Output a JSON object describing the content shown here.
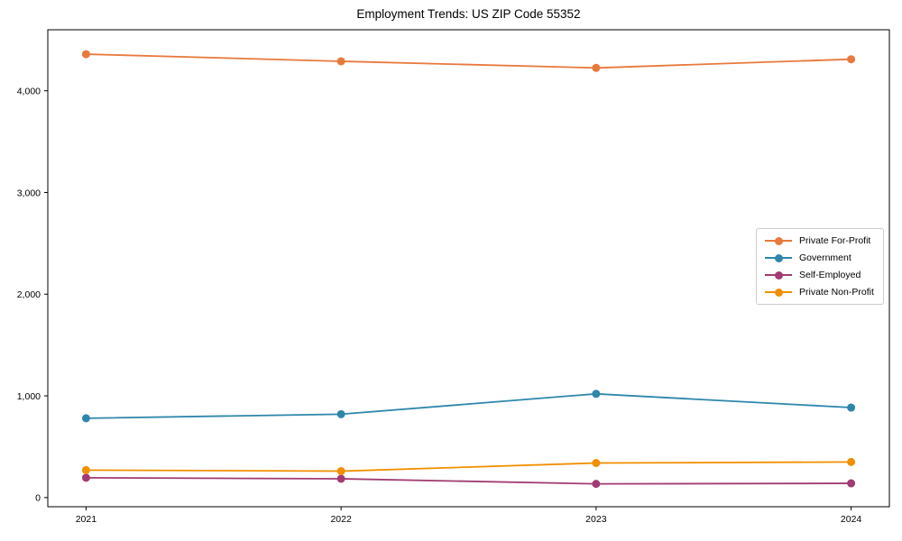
{
  "chart_data": {
    "type": "line",
    "title": "Employment Trends: US ZIP Code 55352",
    "x_categories": [
      "2021",
      "2022",
      "2023",
      "2024"
    ],
    "x_values": [
      2021,
      2022,
      2023,
      2024
    ],
    "series": [
      {
        "name": "Private For-Profit",
        "color": "#E8793D",
        "values": [
          4360,
          4290,
          4225,
          4310
        ]
      },
      {
        "name": "Government",
        "color": "#2E86AB",
        "values": [
          780,
          820,
          1020,
          885
        ]
      },
      {
        "name": "Self-Employed",
        "color": "#A23B72",
        "values": [
          195,
          185,
          135,
          140
        ]
      },
      {
        "name": "Private Non-Profit",
        "color": "#F18F01",
        "values": [
          270,
          260,
          340,
          350
        ]
      }
    ],
    "yticks": {
      "values": [
        0,
        1000,
        2000,
        3000,
        4000
      ],
      "labels": [
        "0",
        "1,000",
        "2,000",
        "3,000",
        "4,000"
      ]
    },
    "xlim": [
      2020.85,
      2024.15
    ],
    "ylim": [
      -90,
      4600
    ],
    "grid": false,
    "legend_position": "center-right",
    "axis_color": "#000000",
    "background_color": "#ffffff"
  }
}
